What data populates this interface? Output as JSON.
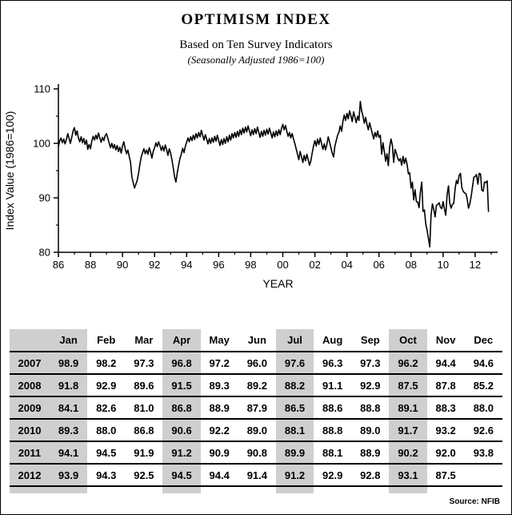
{
  "header": {
    "title": "OPTIMISM INDEX",
    "subtitle": "Based on Ten Survey Indicators",
    "note": "(Seasonally Adjusted 1986=100)"
  },
  "chart_data": {
    "type": "line",
    "title": "OPTIMISM INDEX",
    "xlabel": "YEAR",
    "ylabel": "Index Value (1986=100)",
    "ylim": [
      80,
      110
    ],
    "yticks": [
      80,
      90,
      100,
      110
    ],
    "yticks_minor": [
      85,
      95,
      105
    ],
    "x_axis": {
      "min": 1986,
      "max": 2013.4,
      "major_tick_labels": [
        "86",
        "88",
        "90",
        "92",
        "94",
        "96",
        "98",
        "00",
        "02",
        "04",
        "06",
        "08",
        "10",
        "12"
      ],
      "major_tick_start_year": 1986,
      "major_tick_step_years": 2,
      "minor_tick_start_year": 1987,
      "minor_tick_end_year": 2013,
      "minor_tick_step_years": 2
    },
    "grid": false,
    "legend": "none",
    "series": [
      {
        "name": "Optimism Index (Seasonally Adjusted 1986=100)",
        "start": "1986-01",
        "end": "2012-11",
        "frequency": "monthly",
        "values": [
          99.4,
          100.5,
          101.0,
          100.1,
          100.8,
          99.9,
          100.7,
          101.8,
          100.9,
          100.0,
          101.1,
          102.3,
          102.9,
          101.5,
          102.3,
          101.0,
          100.3,
          101.2,
          100.1,
          100.9,
          99.8,
          100.6,
          98.9,
          99.8,
          99.0,
          100.4,
          101.3,
          100.6,
          101.5,
          100.8,
          101.9,
          101.0,
          100.2,
          101.1,
          100.5,
          101.4,
          101.8,
          100.9,
          100.1,
          99.2,
          100.0,
          99.1,
          99.8,
          98.8,
          99.6,
          98.5,
          99.3,
          98.2,
          99.5,
          100.3,
          99.0,
          98.1,
          98.8,
          97.6,
          96.5,
          93.9,
          92.8,
          91.8,
          92.5,
          93.2,
          94.5,
          96.2,
          97.5,
          98.3,
          99.0,
          98.1,
          98.8,
          98.0,
          99.2,
          98.4,
          97.3,
          98.5,
          99.2,
          100.1,
          99.4,
          100.3,
          99.6,
          98.7,
          99.5,
          98.6,
          99.7,
          98.9,
          97.8,
          99.0,
          98.2,
          97.0,
          95.5,
          93.8,
          92.9,
          94.6,
          96.0,
          97.2,
          98.0,
          99.1,
          98.3,
          99.4,
          100.2,
          101.0,
          100.3,
          101.2,
          100.5,
          101.5,
          100.7,
          101.8,
          101.0,
          102.0,
          101.2,
          102.4,
          101.5,
          100.6,
          101.6,
          100.8,
          99.9,
          100.9,
          100.0,
          101.0,
          100.2,
          101.3,
          100.4,
          101.5,
          100.5,
          99.6,
          100.7,
          99.8,
          100.9,
          100.0,
          101.2,
          100.3,
          101.5,
          100.6,
          101.8,
          101.0,
          102.0,
          101.1,
          102.2,
          101.3,
          102.5,
          101.6,
          102.8,
          101.9,
          103.0,
          102.1,
          103.2,
          102.3,
          101.4,
          102.5,
          101.6,
          102.7,
          101.8,
          103.0,
          102.0,
          101.1,
          102.2,
          101.3,
          102.4,
          101.5,
          102.6,
          101.7,
          102.8,
          101.9,
          101.0,
          102.1,
          101.2,
          102.3,
          101.4,
          102.5,
          101.6,
          102.7,
          103.5,
          102.5,
          103.3,
          102.2,
          101.3,
          102.0,
          101.0,
          101.8,
          100.8,
          100.0,
          99.0,
          98.0,
          97.0,
          98.5,
          97.5,
          96.5,
          97.8,
          96.8,
          98.0,
          97.0,
          96.0,
          96.8,
          98.2,
          99.5,
          100.5,
          99.5,
          100.8,
          99.8,
          101.0,
          100.0,
          98.9,
          99.9,
          98.8,
          99.8,
          101.2,
          100.2,
          99.2,
          98.2,
          97.5,
          99.5,
          100.5,
          101.5,
          102.0,
          103.2,
          102.2,
          104.0,
          105.2,
          104.2,
          105.5,
          104.5,
          106.0,
          105.0,
          104.0,
          105.8,
          104.8,
          103.8,
          105.0,
          104.2,
          107.7,
          106.0,
          105.0,
          103.7,
          104.8,
          103.5,
          102.5,
          103.8,
          102.8,
          101.8,
          100.8,
          102.0,
          101.2,
          102.3,
          101.1,
          101.5,
          98.0,
          100.1,
          98.5,
          96.7,
          98.1,
          95.9,
          99.4,
          100.8,
          99.7,
          96.5,
          98.9,
          98.2,
          97.3,
          96.8,
          97.2,
          96.0,
          97.6,
          96.3,
          97.3,
          96.2,
          94.4,
          94.6,
          91.8,
          92.9,
          89.6,
          91.5,
          89.3,
          89.2,
          88.2,
          91.1,
          92.9,
          87.5,
          87.8,
          85.2,
          84.1,
          82.6,
          81.0,
          86.8,
          88.9,
          87.9,
          86.5,
          88.6,
          88.8,
          89.1,
          88.3,
          88.0,
          89.3,
          88.0,
          86.8,
          90.6,
          92.2,
          89.0,
          88.1,
          88.8,
          89.0,
          91.7,
          93.2,
          92.6,
          94.1,
          94.5,
          91.9,
          91.2,
          90.9,
          90.8,
          89.9,
          88.1,
          88.9,
          90.2,
          92.0,
          93.8,
          93.9,
          94.3,
          92.5,
          94.5,
          94.4,
          91.4,
          91.2,
          92.9,
          92.8,
          93.1,
          87.5
        ]
      }
    ]
  },
  "table": {
    "months": [
      "Jan",
      "Feb",
      "Mar",
      "Apr",
      "May",
      "Jun",
      "Jul",
      "Aug",
      "Sep",
      "Oct",
      "Nov",
      "Dec"
    ],
    "shaded_months": [
      "Jan",
      "Apr",
      "Jul",
      "Oct"
    ],
    "rows": [
      {
        "year": "2007",
        "values": [
          "98.9",
          "98.2",
          "97.3",
          "96.8",
          "97.2",
          "96.0",
          "97.6",
          "96.3",
          "97.3",
          "96.2",
          "94.4",
          "94.6"
        ]
      },
      {
        "year": "2008",
        "values": [
          "91.8",
          "92.9",
          "89.6",
          "91.5",
          "89.3",
          "89.2",
          "88.2",
          "91.1",
          "92.9",
          "87.5",
          "87.8",
          "85.2"
        ]
      },
      {
        "year": "2009",
        "values": [
          "84.1",
          "82.6",
          "81.0",
          "86.8",
          "88.9",
          "87.9",
          "86.5",
          "88.6",
          "88.8",
          "89.1",
          "88.3",
          "88.0"
        ]
      },
      {
        "year": "2010",
        "values": [
          "89.3",
          "88.0",
          "86.8",
          "90.6",
          "92.2",
          "89.0",
          "88.1",
          "88.8",
          "89.0",
          "91.7",
          "93.2",
          "92.6"
        ]
      },
      {
        "year": "2011",
        "values": [
          "94.1",
          "94.5",
          "91.9",
          "91.2",
          "90.9",
          "90.8",
          "89.9",
          "88.1",
          "88.9",
          "90.2",
          "92.0",
          "93.8"
        ]
      },
      {
        "year": "2012",
        "values": [
          "93.9",
          "94.3",
          "92.5",
          "94.5",
          "94.4",
          "91.4",
          "91.2",
          "92.9",
          "92.8",
          "93.1",
          "87.5",
          ""
        ]
      }
    ]
  },
  "footer": {
    "source": "Source: NFIB",
    "shade_color": "#cfcfcf",
    "line_color": "#000000"
  }
}
